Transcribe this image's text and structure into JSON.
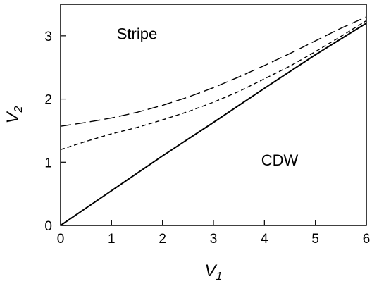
{
  "chart_data": {
    "type": "line",
    "xlabel": {
      "main": "V",
      "sub": "1"
    },
    "ylabel": {
      "main": "V",
      "sub": "2"
    },
    "xlim": [
      0,
      6
    ],
    "ylim": [
      0,
      3.5
    ],
    "xticks": [
      0,
      1,
      2,
      3,
      4,
      5,
      6
    ],
    "yticks": [
      0,
      1,
      2,
      3
    ],
    "grid": false,
    "annotations": [
      {
        "text": "Stripe",
        "x": 1.5,
        "y": 2.95
      },
      {
        "text": "CDW",
        "x": 4.3,
        "y": 0.95
      }
    ],
    "series": [
      {
        "style": "solid",
        "x": [
          0,
          1,
          2,
          3,
          4,
          5,
          6
        ],
        "y": [
          0,
          0.55,
          1.1,
          1.63,
          2.17,
          2.7,
          3.2
        ]
      },
      {
        "style": "short-dash",
        "x": [
          0,
          0.5,
          1,
          1.5,
          2,
          2.5,
          3,
          3.5,
          4,
          4.5,
          5,
          5.5,
          6
        ],
        "y": [
          1.2,
          1.33,
          1.45,
          1.55,
          1.67,
          1.8,
          1.95,
          2.12,
          2.32,
          2.52,
          2.75,
          2.99,
          3.24
        ]
      },
      {
        "style": "long-dash",
        "x": [
          0,
          0.5,
          1,
          1.5,
          2,
          2.5,
          3,
          3.5,
          4,
          4.5,
          5,
          5.5,
          6
        ],
        "y": [
          1.57,
          1.63,
          1.7,
          1.79,
          1.9,
          2.03,
          2.18,
          2.35,
          2.53,
          2.72,
          2.92,
          3.12,
          3.3
        ]
      }
    ]
  }
}
